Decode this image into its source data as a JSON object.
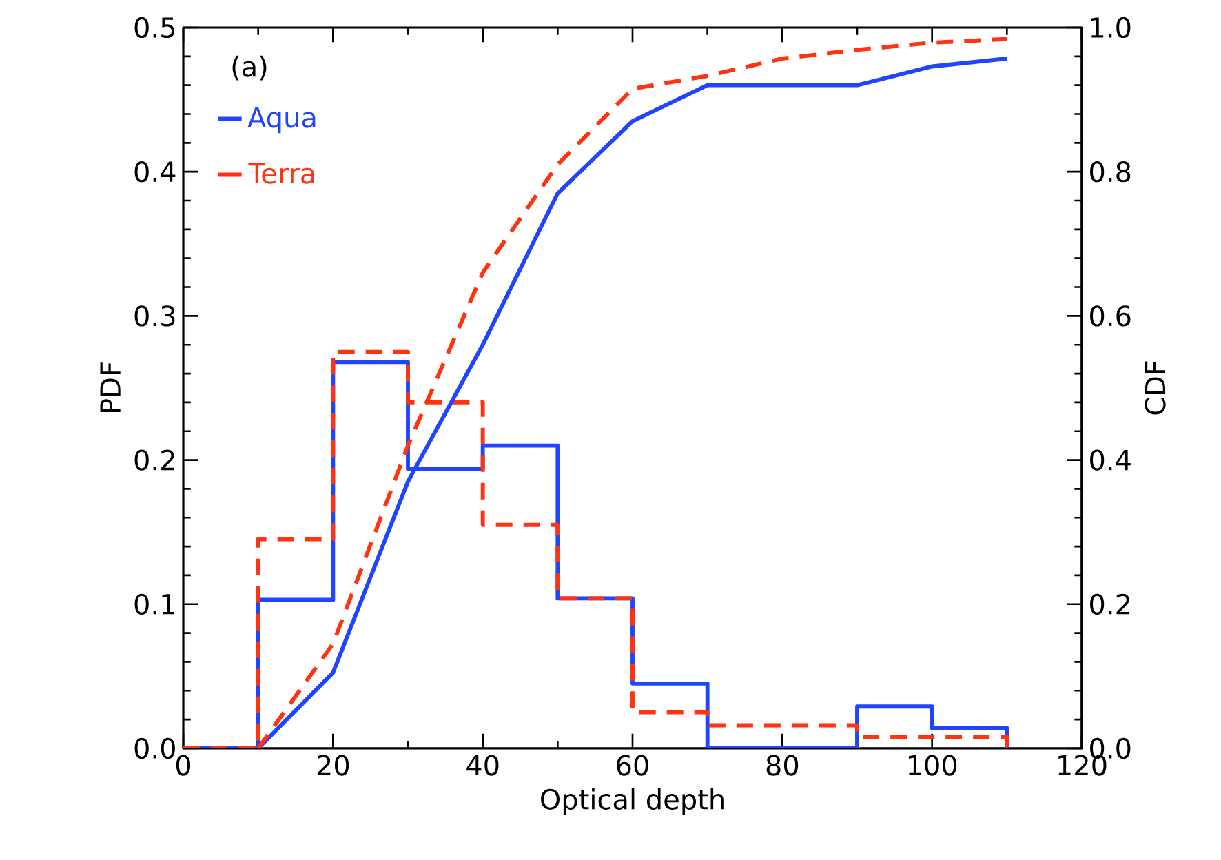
{
  "chart_data": {
    "type": "histogram",
    "xlabel": "Optical depth",
    "ylabel": "PDF",
    "y2label": "CDF",
    "annotations": [
      "(a)"
    ],
    "bins": [
      0,
      10,
      20,
      30,
      40,
      50,
      60,
      70,
      80,
      90,
      100,
      110
    ],
    "series": [
      {
        "name": "Aqua",
        "color": "#1f45ff",
        "line_style": "solid",
        "values": [
          0,
          0.103,
          0.268,
          0.194,
          0.21,
          0.104,
          0.045,
          0,
          0,
          0.029,
          0.014
        ]
      },
      {
        "name": "Terra",
        "color": "#ff3311",
        "line_style": "dashed",
        "values": [
          0,
          0.145,
          0.275,
          0.24,
          0.155,
          0.104,
          0.025,
          0.016,
          0.016,
          0.008,
          0.008
        ]
      },
      {
        "type": "line",
        "axis": "y2",
        "color": "#1f45ff",
        "line_style": "solid",
        "x": [
          10,
          20,
          30,
          40,
          50,
          60,
          70,
          80,
          90,
          100,
          110
        ],
        "values": [
          0,
          0.105,
          0.37,
          0.56,
          0.77,
          0.87,
          0.92,
          0.92,
          0.92,
          0.946,
          0.957
        ]
      },
      {
        "type": "line",
        "axis": "y2",
        "color": "#ff3311",
        "line_style": "dashed",
        "x": [
          10,
          20,
          30,
          40,
          50,
          60,
          70,
          80,
          90,
          100,
          110
        ],
        "values": [
          0,
          0.145,
          0.42,
          0.66,
          0.81,
          0.915,
          0.933,
          0.957,
          0.969,
          0.979,
          0.984
        ]
      }
    ],
    "xlim": [
      0,
      120
    ],
    "xticks": [
      0,
      20,
      40,
      60,
      80,
      100,
      120
    ],
    "ylim": [
      0,
      0.5
    ],
    "yticks": [
      {
        "value": 0,
        "label": "0.0"
      },
      0.1,
      0.2,
      0.3,
      0.4,
      0.5
    ],
    "y2lim": [
      0,
      1
    ],
    "y2ticks": [
      {
        "value": 0,
        "label": "0.0"
      },
      0.2,
      0.4,
      0.6,
      0.8,
      {
        "value": 1,
        "label": "1.0"
      }
    ],
    "legend": "top left"
  }
}
